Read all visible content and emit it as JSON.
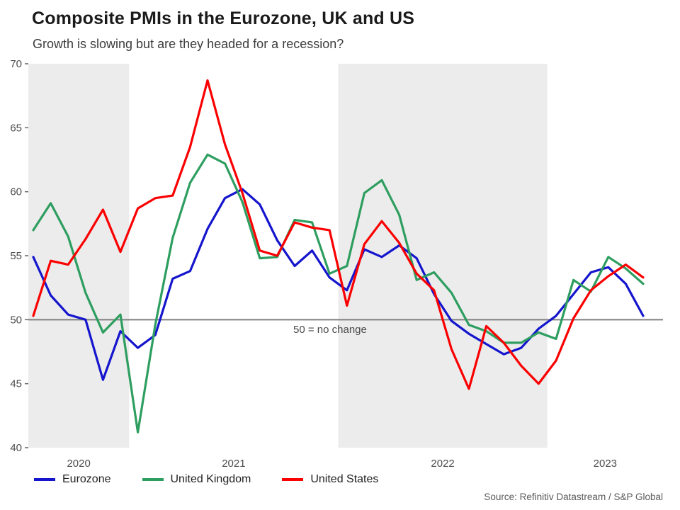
{
  "header": {
    "title": "Composite PMIs in the Eurozone, UK and US",
    "subtitle": "Growth is slowing but are they headed for a recession?"
  },
  "source": "Source: Refinitiv Datastream / S&P Global",
  "chart_data": {
    "type": "line",
    "title": "Composite PMIs in the Eurozone, UK and US",
    "subtitle": "Growth is slowing but are they headed for a recession?",
    "x": [
      "Jul 2020",
      "Aug 2020",
      "Sep 2020",
      "Oct 2020",
      "Nov 2020",
      "Dec 2020",
      "Jan 2021",
      "Feb 2021",
      "Mar 2021",
      "Apr 2021",
      "May 2021",
      "Jun 2021",
      "Jul 2021",
      "Aug 2021",
      "Sep 2021",
      "Oct 2021",
      "Nov 2021",
      "Dec 2021",
      "Jan 2022",
      "Feb 2022",
      "Mar 2022",
      "Apr 2022",
      "May 2022",
      "Jun 2022",
      "Jul 2022",
      "Aug 2022",
      "Sep 2022",
      "Oct 2022",
      "Nov 2022",
      "Dec 2022",
      "Jan 2023",
      "Feb 2023",
      "Mar 2023",
      "Apr 2023",
      "May 2023",
      "Jun 2023"
    ],
    "series": [
      {
        "name": "Eurozone",
        "color": "#1515cd",
        "values": [
          54.9,
          51.9,
          50.4,
          50.0,
          45.3,
          49.1,
          47.8,
          48.8,
          53.2,
          53.8,
          57.1,
          59.5,
          60.2,
          59.0,
          56.2,
          54.2,
          55.4,
          53.3,
          52.3,
          55.5,
          54.9,
          55.8,
          54.8,
          52.0,
          49.9,
          48.9,
          48.1,
          47.3,
          47.8,
          49.3,
          50.3,
          52.0,
          53.7,
          54.1,
          52.8,
          50.3
        ]
      },
      {
        "name": "United Kingdom",
        "color": "#2e9e60",
        "values": [
          57.0,
          59.1,
          56.5,
          52.1,
          49.0,
          50.4,
          41.2,
          49.6,
          56.4,
          60.7,
          62.9,
          62.2,
          59.2,
          54.8,
          54.9,
          57.8,
          57.6,
          53.6,
          54.2,
          59.9,
          60.9,
          58.2,
          53.1,
          53.7,
          52.1,
          49.6,
          49.1,
          48.2,
          48.2,
          49.0,
          48.5,
          53.1,
          52.2,
          54.9,
          54.0,
          52.8
        ]
      },
      {
        "name": "United States",
        "color": "#fb0000",
        "values": [
          50.3,
          54.6,
          54.3,
          56.3,
          58.6,
          55.3,
          58.7,
          59.5,
          59.7,
          63.5,
          68.7,
          63.7,
          59.9,
          55.4,
          55.0,
          57.6,
          57.2,
          57.0,
          51.1,
          55.9,
          57.7,
          56.0,
          53.6,
          52.3,
          47.7,
          44.6,
          49.5,
          48.2,
          46.4,
          45.0,
          46.8,
          50.1,
          52.3,
          53.4,
          54.3,
          53.3
        ]
      }
    ],
    "ylim": [
      40,
      70
    ],
    "y_ticks": [
      40,
      45,
      50,
      55,
      60,
      65,
      70
    ],
    "x_tick_labels": [
      "2020",
      "2021",
      "2022",
      "2023"
    ],
    "reference_line": {
      "value": 50,
      "label": "50 = no change"
    },
    "shaded_years": [
      "2020",
      "2022"
    ],
    "band_color": "#ececec",
    "grid": "reference line at 50 only",
    "legend_position": "bottom"
  }
}
